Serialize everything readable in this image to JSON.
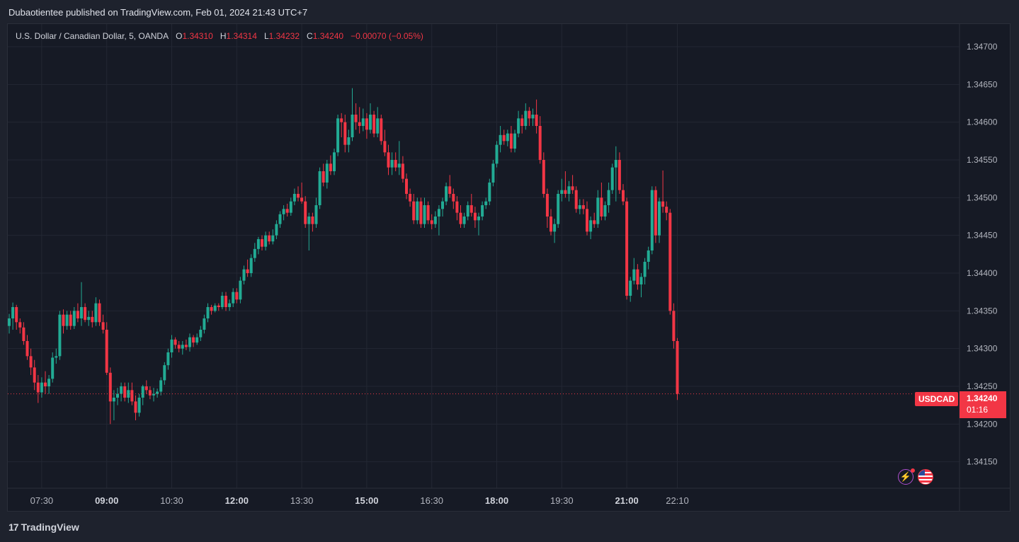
{
  "header": {
    "published_text": "Dubaotientee published on TradingView.com, Feb 01, 2024 21:43 UTC+7"
  },
  "legend": {
    "instrument": "U.S. Dollar / Canadian Dollar, 5, OANDA",
    "o_label": "O",
    "o_value": "1.34310",
    "h_label": "H",
    "h_value": "1.34314",
    "l_label": "L",
    "l_value": "1.34232",
    "c_label": "C",
    "c_value": "1.34240",
    "change": "−0.00070 (−0.05%)"
  },
  "badges": {
    "symbol": "USDCAD",
    "price": "1.34240",
    "countdown": "01:16"
  },
  "footer": {
    "brand": "TradingView",
    "logo_text": "17"
  },
  "icons": {
    "bolt": "lightning-icon",
    "flag": "us-flag-icon"
  },
  "colors": {
    "up": "#22ab94",
    "down": "#f23645",
    "grid": "#232733",
    "bg": "#161a25",
    "axis_text": "#b2b5be"
  },
  "chart_data": {
    "type": "candlestick",
    "symbol": "USDCAD",
    "interval": "5",
    "ylim": [
      1.34115,
      1.3473
    ],
    "y_ticks": [
      "1.34150",
      "1.34200",
      "1.34250",
      "1.34300",
      "1.34350",
      "1.34400",
      "1.34450",
      "1.34500",
      "1.34550",
      "1.34600",
      "1.34650",
      "1.34700"
    ],
    "x_ticks": [
      {
        "label": "07:30",
        "idx": 9,
        "bold": false
      },
      {
        "label": "09:00",
        "idx": 27,
        "bold": true
      },
      {
        "label": "10:30",
        "idx": 45,
        "bold": false
      },
      {
        "label": "12:00",
        "idx": 63,
        "bold": true
      },
      {
        "label": "13:30",
        "idx": 81,
        "bold": false
      },
      {
        "label": "15:00",
        "idx": 99,
        "bold": true
      },
      {
        "label": "16:30",
        "idx": 117,
        "bold": false
      },
      {
        "label": "18:00",
        "idx": 135,
        "bold": true
      },
      {
        "label": "19:30",
        "idx": 153,
        "bold": false
      },
      {
        "label": "21:00",
        "idx": 171,
        "bold": true
      },
      {
        "label": "22:10",
        "idx": 185,
        "bold": false
      }
    ],
    "last_price": 1.3424,
    "candles": [
      [
        1.3433,
        1.34346,
        1.3432,
        1.3434
      ],
      [
        1.3434,
        1.34361,
        1.34325,
        1.34355
      ],
      [
        1.34355,
        1.34358,
        1.34325,
        1.34335
      ],
      [
        1.34335,
        1.3434,
        1.3432,
        1.34328
      ],
      [
        1.34328,
        1.34335,
        1.34305,
        1.3431
      ],
      [
        1.3431,
        1.34318,
        1.34285,
        1.3429
      ],
      [
        1.3429,
        1.343,
        1.34265,
        1.34275
      ],
      [
        1.34275,
        1.34285,
        1.34245,
        1.34255
      ],
      [
        1.34255,
        1.34265,
        1.34228,
        1.34242
      ],
      [
        1.34242,
        1.34262,
        1.34235,
        1.34255
      ],
      [
        1.34255,
        1.3427,
        1.3424,
        1.3425
      ],
      [
        1.3425,
        1.34265,
        1.3424,
        1.3426
      ],
      [
        1.3426,
        1.34295,
        1.34255,
        1.34288
      ],
      [
        1.34288,
        1.343,
        1.3428,
        1.3429
      ],
      [
        1.3429,
        1.3435,
        1.34285,
        1.34345
      ],
      [
        1.34345,
        1.34352,
        1.3432,
        1.3433
      ],
      [
        1.3433,
        1.3435,
        1.34325,
        1.34345
      ],
      [
        1.34345,
        1.3435,
        1.34325,
        1.3433
      ],
      [
        1.3433,
        1.34355,
        1.34326,
        1.3435
      ],
      [
        1.3435,
        1.3436,
        1.34335,
        1.3434
      ],
      [
        1.3434,
        1.34388,
        1.3433,
        1.34355
      ],
      [
        1.34355,
        1.3436,
        1.34335,
        1.34338
      ],
      [
        1.34338,
        1.3435,
        1.3433,
        1.34342
      ],
      [
        1.34342,
        1.3435,
        1.34328,
        1.34335
      ],
      [
        1.34335,
        1.34368,
        1.3433,
        1.3436
      ],
      [
        1.3436,
        1.34365,
        1.3433,
        1.34335
      ],
      [
        1.34335,
        1.34345,
        1.3432,
        1.34325
      ],
      [
        1.34325,
        1.34335,
        1.34265,
        1.34268
      ],
      [
        1.34268,
        1.34275,
        1.342,
        1.3423
      ],
      [
        1.3423,
        1.34245,
        1.34205,
        1.34235
      ],
      [
        1.34235,
        1.34248,
        1.34225,
        1.3424
      ],
      [
        1.3424,
        1.34255,
        1.3423,
        1.3425
      ],
      [
        1.3425,
        1.34255,
        1.3423,
        1.34235
      ],
      [
        1.34235,
        1.34255,
        1.34228,
        1.34245
      ],
      [
        1.34245,
        1.34255,
        1.34225,
        1.3423
      ],
      [
        1.3423,
        1.34238,
        1.34205,
        1.34215
      ],
      [
        1.34215,
        1.3424,
        1.3421,
        1.34235
      ],
      [
        1.34235,
        1.34252,
        1.34225,
        1.3425
      ],
      [
        1.3425,
        1.34258,
        1.3424,
        1.34245
      ],
      [
        1.34245,
        1.3425,
        1.34233,
        1.34238
      ],
      [
        1.34238,
        1.34248,
        1.3423,
        1.3424
      ],
      [
        1.3424,
        1.34247,
        1.34235,
        1.34243
      ],
      [
        1.34243,
        1.34262,
        1.34238,
        1.34258
      ],
      [
        1.34258,
        1.34282,
        1.34252,
        1.34278
      ],
      [
        1.34278,
        1.343,
        1.34272,
        1.34295
      ],
      [
        1.34295,
        1.34318,
        1.34288,
        1.34312
      ],
      [
        1.34312,
        1.34315,
        1.343,
        1.34305
      ],
      [
        1.34305,
        1.3431,
        1.34295,
        1.343
      ],
      [
        1.343,
        1.3431,
        1.34292,
        1.34305
      ],
      [
        1.34305,
        1.34312,
        1.34298,
        1.34302
      ],
      [
        1.34302,
        1.3432,
        1.34296,
        1.34315
      ],
      [
        1.34315,
        1.34318,
        1.34302,
        1.34308
      ],
      [
        1.34308,
        1.3432,
        1.34305,
        1.34315
      ],
      [
        1.34315,
        1.3433,
        1.3431,
        1.34325
      ],
      [
        1.34325,
        1.34345,
        1.3432,
        1.3434
      ],
      [
        1.3434,
        1.3436,
        1.34335,
        1.34355
      ],
      [
        1.34355,
        1.34358,
        1.34345,
        1.3435
      ],
      [
        1.3435,
        1.3436,
        1.34348,
        1.34357
      ],
      [
        1.34357,
        1.3436,
        1.3435,
        1.34355
      ],
      [
        1.34355,
        1.34375,
        1.34352,
        1.3437
      ],
      [
        1.3437,
        1.34375,
        1.3435,
        1.34355
      ],
      [
        1.34355,
        1.34365,
        1.3435,
        1.3436
      ],
      [
        1.3436,
        1.3438,
        1.34355,
        1.34375
      ],
      [
        1.34375,
        1.3438,
        1.3436,
        1.34365
      ],
      [
        1.34365,
        1.34395,
        1.3436,
        1.3439
      ],
      [
        1.3439,
        1.3441,
        1.34385,
        1.34405
      ],
      [
        1.34405,
        1.34418,
        1.34395,
        1.344
      ],
      [
        1.344,
        1.34425,
        1.34395,
        1.3442
      ],
      [
        1.3442,
        1.3444,
        1.34415,
        1.34432
      ],
      [
        1.34432,
        1.34448,
        1.34425,
        1.34445
      ],
      [
        1.34445,
        1.3445,
        1.3443,
        1.34435
      ],
      [
        1.34435,
        1.34455,
        1.3443,
        1.3445
      ],
      [
        1.3445,
        1.34455,
        1.34438,
        1.34442
      ],
      [
        1.34442,
        1.34458,
        1.34438,
        1.3445
      ],
      [
        1.3445,
        1.3447,
        1.34445,
        1.34465
      ],
      [
        1.34465,
        1.34482,
        1.3446,
        1.34478
      ],
      [
        1.34478,
        1.3449,
        1.3447,
        1.34485
      ],
      [
        1.34485,
        1.34492,
        1.34475,
        1.3448
      ],
      [
        1.3448,
        1.345,
        1.34476,
        1.34495
      ],
      [
        1.34495,
        1.34512,
        1.3449,
        1.34505
      ],
      [
        1.34505,
        1.34515,
        1.34495,
        1.345
      ],
      [
        1.345,
        1.3452,
        1.34492,
        1.34495
      ],
      [
        1.34495,
        1.34502,
        1.3446,
        1.34465
      ],
      [
        1.34465,
        1.3448,
        1.3443,
        1.34475
      ],
      [
        1.34475,
        1.3448,
        1.34455,
        1.34465
      ],
      [
        1.34465,
        1.345,
        1.3446,
        1.3449
      ],
      [
        1.3449,
        1.3454,
        1.34485,
        1.34535
      ],
      [
        1.34535,
        1.34545,
        1.34515,
        1.3452
      ],
      [
        1.3452,
        1.3455,
        1.34512,
        1.34545
      ],
      [
        1.34545,
        1.34556,
        1.3453,
        1.34535
      ],
      [
        1.34535,
        1.34565,
        1.3453,
        1.3456
      ],
      [
        1.3456,
        1.3461,
        1.34555,
        1.34605
      ],
      [
        1.34605,
        1.34612,
        1.3458,
        1.346
      ],
      [
        1.346,
        1.3461,
        1.3456,
        1.3457
      ],
      [
        1.3457,
        1.3459,
        1.3456,
        1.3458
      ],
      [
        1.3458,
        1.34645,
        1.34575,
        1.3461
      ],
      [
        1.3461,
        1.34625,
        1.3459,
        1.346
      ],
      [
        1.346,
        1.3462,
        1.34585,
        1.34595
      ],
      [
        1.34595,
        1.34618,
        1.34588,
        1.34605
      ],
      [
        1.34605,
        1.34612,
        1.34578,
        1.3459
      ],
      [
        1.3459,
        1.34625,
        1.34585,
        1.3461
      ],
      [
        1.3461,
        1.34615,
        1.3458,
        1.34585
      ],
      [
        1.34585,
        1.3462,
        1.3458,
        1.34605
      ],
      [
        1.34605,
        1.3461,
        1.3457,
        1.34575
      ],
      [
        1.34575,
        1.3459,
        1.34555,
        1.3456
      ],
      [
        1.3456,
        1.3457,
        1.3453,
        1.3454
      ],
      [
        1.3454,
        1.3456,
        1.3453,
        1.3455
      ],
      [
        1.3455,
        1.3456,
        1.34535,
        1.3454
      ],
      [
        1.3454,
        1.34575,
        1.3453,
        1.34545
      ],
      [
        1.34545,
        1.34555,
        1.3452,
        1.34525
      ],
      [
        1.34525,
        1.34532,
        1.34498,
        1.34505
      ],
      [
        1.34505,
        1.34512,
        1.34488,
        1.34495
      ],
      [
        1.34495,
        1.34505,
        1.34465,
        1.3447
      ],
      [
        1.3447,
        1.345,
        1.34465,
        1.34495
      ],
      [
        1.34495,
        1.345,
        1.3446,
        1.34465
      ],
      [
        1.34465,
        1.345,
        1.3446,
        1.3449
      ],
      [
        1.3449,
        1.34495,
        1.34465,
        1.3447
      ],
      [
        1.3447,
        1.34478,
        1.34458,
        1.34465
      ],
      [
        1.34465,
        1.34482,
        1.3446,
        1.34475
      ],
      [
        1.34475,
        1.3449,
        1.3445,
        1.34485
      ],
      [
        1.34485,
        1.345,
        1.34475,
        1.34495
      ],
      [
        1.34495,
        1.3452,
        1.3449,
        1.34515
      ],
      [
        1.34515,
        1.3453,
        1.345,
        1.34505
      ],
      [
        1.34505,
        1.34512,
        1.34485,
        1.34495
      ],
      [
        1.34495,
        1.34502,
        1.3447,
        1.3448
      ],
      [
        1.3448,
        1.3449,
        1.3446,
        1.34465
      ],
      [
        1.34465,
        1.3448,
        1.3446,
        1.34475
      ],
      [
        1.34475,
        1.34495,
        1.3447,
        1.3449
      ],
      [
        1.3449,
        1.34505,
        1.34475,
        1.3448
      ],
      [
        1.3448,
        1.34488,
        1.3446,
        1.3447
      ],
      [
        1.3447,
        1.3448,
        1.3445,
        1.34475
      ],
      [
        1.34475,
        1.34495,
        1.3447,
        1.3449
      ],
      [
        1.3449,
        1.345,
        1.34485,
        1.34495
      ],
      [
        1.34495,
        1.34525,
        1.3449,
        1.3452
      ],
      [
        1.3452,
        1.3455,
        1.34515,
        1.34545
      ],
      [
        1.34545,
        1.34575,
        1.3454,
        1.3457
      ],
      [
        1.3457,
        1.34595,
        1.3456,
        1.34583
      ],
      [
        1.34583,
        1.3459,
        1.3457,
        1.34575
      ],
      [
        1.34575,
        1.3459,
        1.34568,
        1.34585
      ],
      [
        1.34585,
        1.34595,
        1.3456,
        1.34565
      ],
      [
        1.34565,
        1.3459,
        1.3456,
        1.34585
      ],
      [
        1.34585,
        1.34615,
        1.3458,
        1.34605
      ],
      [
        1.34605,
        1.3461,
        1.34585,
        1.34595
      ],
      [
        1.34595,
        1.34625,
        1.3459,
        1.34615
      ],
      [
        1.34615,
        1.3462,
        1.34595,
        1.34605
      ],
      [
        1.34605,
        1.34618,
        1.34595,
        1.3461
      ],
      [
        1.3461,
        1.3463,
        1.34585,
        1.34595
      ],
      [
        1.34595,
        1.34608,
        1.34545,
        1.3455
      ],
      [
        1.3455,
        1.3456,
        1.345,
        1.34505
      ],
      [
        1.34505,
        1.34512,
        1.3446,
        1.34475
      ],
      [
        1.34475,
        1.34485,
        1.3445,
        1.34455
      ],
      [
        1.34455,
        1.34472,
        1.3444,
        1.34465
      ],
      [
        1.34465,
        1.3451,
        1.3446,
        1.34505
      ],
      [
        1.34505,
        1.34525,
        1.34495,
        1.3451
      ],
      [
        1.3451,
        1.34535,
        1.345,
        1.34505
      ],
      [
        1.34505,
        1.34522,
        1.34495,
        1.34515
      ],
      [
        1.34515,
        1.3453,
        1.34505,
        1.3451
      ],
      [
        1.3451,
        1.34515,
        1.3448,
        1.34485
      ],
      [
        1.34485,
        1.34498,
        1.34478,
        1.3449
      ],
      [
        1.3449,
        1.34498,
        1.34478,
        1.34485
      ],
      [
        1.34485,
        1.34495,
        1.3445,
        1.34455
      ],
      [
        1.34455,
        1.34475,
        1.34445,
        1.3447
      ],
      [
        1.3447,
        1.3448,
        1.3446,
        1.34465
      ],
      [
        1.34465,
        1.3451,
        1.3446,
        1.345
      ],
      [
        1.345,
        1.3452,
        1.3447,
        1.34475
      ],
      [
        1.34475,
        1.34495,
        1.3447,
        1.3449
      ],
      [
        1.3449,
        1.3452,
        1.3448,
        1.3451
      ],
      [
        1.3451,
        1.34545,
        1.34505,
        1.3454
      ],
      [
        1.3454,
        1.34568,
        1.34495,
        1.3455
      ],
      [
        1.3455,
        1.3456,
        1.34505,
        1.3451
      ],
      [
        1.3451,
        1.34518,
        1.3449,
        1.34495
      ],
      [
        1.34495,
        1.345,
        1.34365,
        1.3437
      ],
      [
        1.3437,
        1.34395,
        1.34362,
        1.3439
      ],
      [
        1.3439,
        1.3442,
        1.34385,
        1.34405
      ],
      [
        1.34405,
        1.34412,
        1.34378,
        1.34385
      ],
      [
        1.34385,
        1.344,
        1.34368,
        1.34395
      ],
      [
        1.34395,
        1.3442,
        1.34385,
        1.34415
      ],
      [
        1.34415,
        1.34435,
        1.34405,
        1.3443
      ],
      [
        1.3443,
        1.34515,
        1.34425,
        1.3451
      ],
      [
        1.3451,
        1.34515,
        1.3444,
        1.3445
      ],
      [
        1.3445,
        1.345,
        1.3444,
        1.34495
      ],
      [
        1.34495,
        1.34536,
        1.3448,
        1.34488
      ],
      [
        1.34488,
        1.34495,
        1.3447,
        1.3448
      ],
      [
        1.3448,
        1.34485,
        1.34345,
        1.3435
      ],
      [
        1.3435,
        1.3436,
        1.343,
        1.3431
      ],
      [
        1.3431,
        1.34314,
        1.34232,
        1.3424
      ]
    ]
  }
}
